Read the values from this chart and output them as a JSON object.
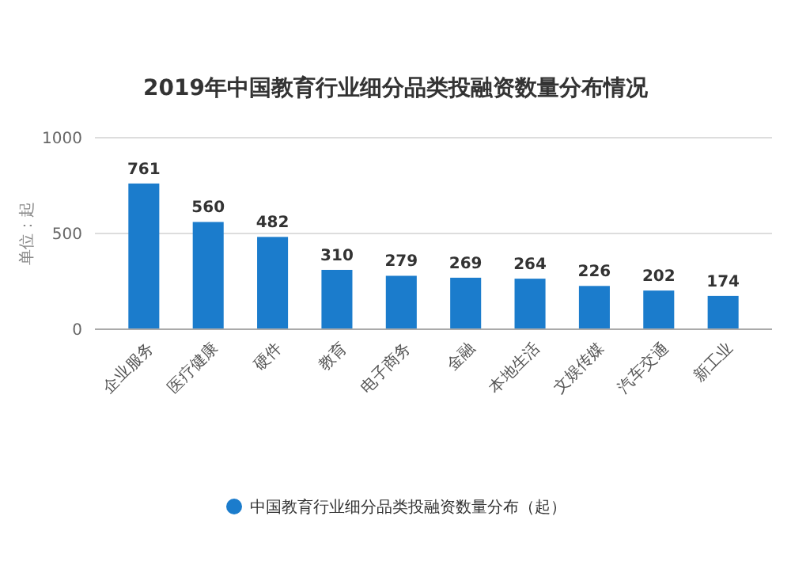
{
  "chart_data": {
    "type": "bar",
    "title": "2019年中国教育行业细分品类投融资数量分布情况",
    "ylabel": "单位：起",
    "categories": [
      "企业服务",
      "医疗健康",
      "硬件",
      "教育",
      "电子商务",
      "金融",
      "本地生活",
      "文娱传媒",
      "汽车交通",
      "新工业"
    ],
    "series": [
      {
        "name": "中国教育行业细分品类投融资数量分布（起）",
        "color": "#1b7ccc",
        "values": [
          761,
          560,
          482,
          310,
          279,
          269,
          264,
          226,
          202,
          174
        ]
      }
    ],
    "ylim": [
      0,
      1000
    ],
    "yticks": [
      0,
      500,
      1000
    ],
    "grid": "y",
    "legend": "bottom",
    "data_labels": true
  }
}
